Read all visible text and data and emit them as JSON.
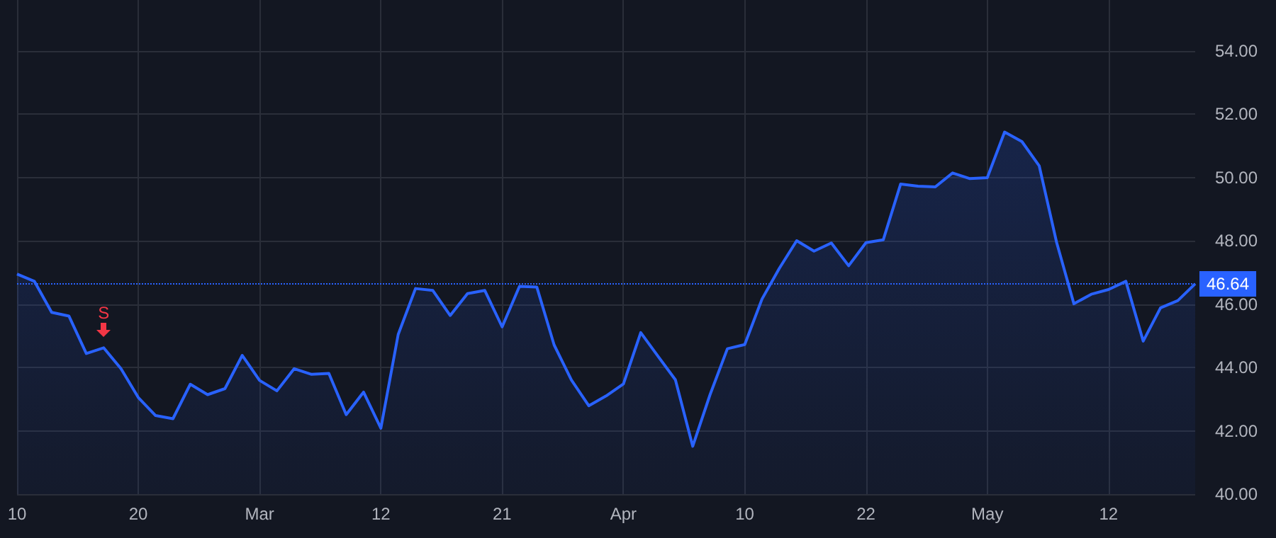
{
  "chart_data": {
    "type": "area",
    "categories": [
      "10",
      null,
      null,
      null,
      null,
      null,
      null,
      "20",
      null,
      null,
      null,
      null,
      null,
      null,
      "Mar",
      null,
      null,
      null,
      null,
      null,
      null,
      "12",
      null,
      null,
      null,
      null,
      null,
      null,
      "21",
      null,
      null,
      null,
      null,
      null,
      null,
      "Apr",
      null,
      null,
      null,
      null,
      null,
      null,
      "10",
      null,
      null,
      null,
      null,
      null,
      null,
      "22",
      null,
      null,
      null,
      null,
      null,
      null,
      "May",
      null,
      null,
      null,
      null,
      null,
      null,
      "12",
      null,
      null,
      null,
      null,
      null
    ],
    "series": [
      {
        "color": "#2962ff",
        "values": [
          46.95,
          46.72,
          45.74,
          45.62,
          44.44,
          44.62,
          43.96,
          43.05,
          42.48,
          42.38,
          43.47,
          43.14,
          43.33,
          44.38,
          43.59,
          43.26,
          43.96,
          43.78,
          43.81,
          42.51,
          43.22,
          42.08,
          45.04,
          46.49,
          46.43,
          45.64,
          46.33,
          46.43,
          45.28,
          46.56,
          46.54,
          44.71,
          43.6,
          42.79,
          43.1,
          43.48,
          45.1,
          44.35,
          43.61,
          41.51,
          43.14,
          44.59,
          44.72,
          46.16,
          47.13,
          48.0,
          47.67,
          47.93,
          47.21,
          47.94,
          48.03,
          49.79,
          49.72,
          49.7,
          50.14,
          49.96,
          49.99,
          51.43,
          51.13,
          50.36,
          47.95,
          46.01,
          46.31,
          46.46,
          46.72,
          44.83,
          45.88,
          46.11,
          46.64
        ]
      }
    ],
    "ylim": [
      40,
      55.6
    ],
    "yticks": [
      {
        "value": 40,
        "label": "40.00"
      },
      {
        "value": 42,
        "label": "42.00"
      },
      {
        "value": 44,
        "label": "44.00"
      },
      {
        "value": 46,
        "label": "46.00"
      },
      {
        "value": 48,
        "label": "48.00"
      },
      {
        "value": 50,
        "label": "50.00"
      },
      {
        "value": 52,
        "label": "52.00"
      },
      {
        "value": 54,
        "label": "54.00"
      }
    ],
    "ref_lines": [
      {
        "axis": "y",
        "value": 46.64,
        "label": "46.64",
        "color": "#2962ff",
        "line_style": "dotted"
      }
    ],
    "annotations": [
      {
        "text": "S",
        "y": 44.62
      }
    ],
    "grid": true,
    "marker": "none",
    "line_style": "solid"
  }
}
